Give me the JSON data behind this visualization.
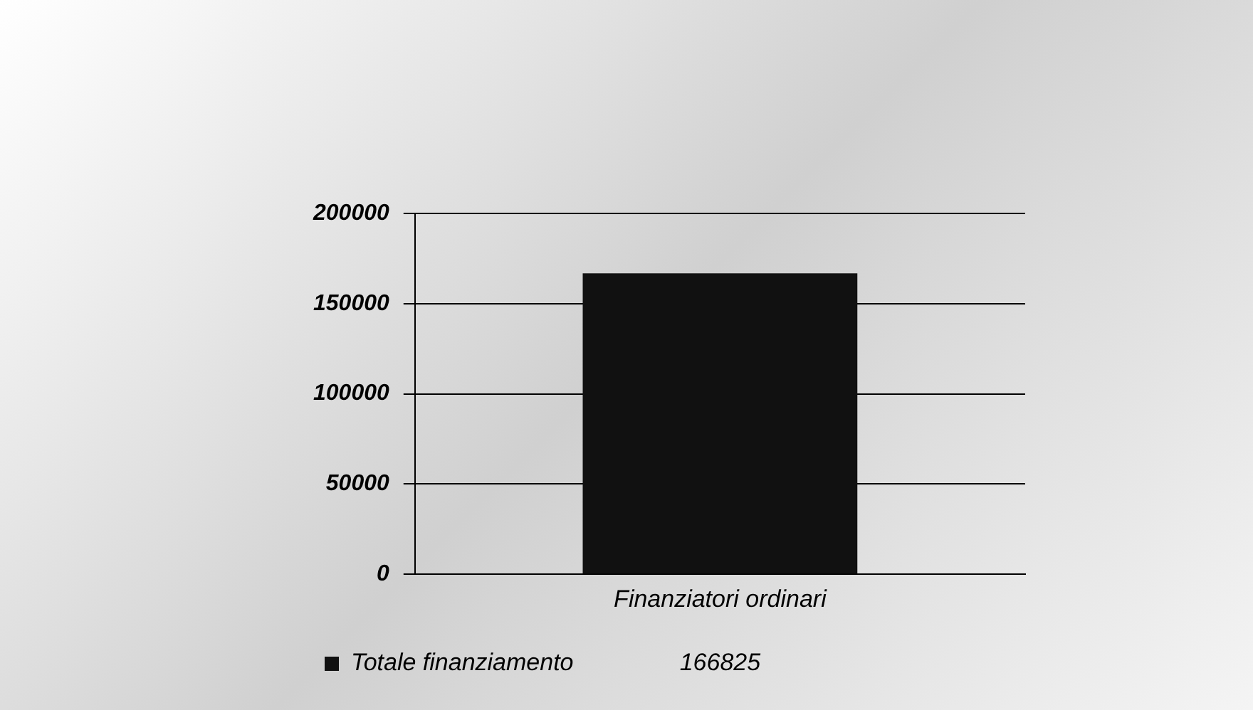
{
  "chart_data": {
    "type": "bar",
    "categories": [
      "Finanziatori ordinari"
    ],
    "series": [
      {
        "name": "Totale finanziamento",
        "color": "#111111",
        "values": [
          166825
        ]
      }
    ],
    "ylim": [
      0,
      200000
    ],
    "yticks": [
      0,
      50000,
      100000,
      150000,
      200000
    ],
    "grid": "y",
    "legend": "bottom left",
    "data_labels": true
  }
}
